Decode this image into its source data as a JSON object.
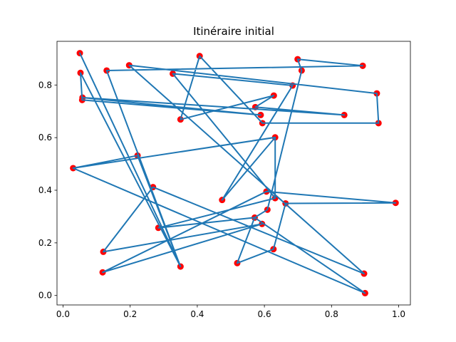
{
  "chart_data": {
    "type": "line",
    "title": "Itinéraire initial",
    "xlabel": "",
    "ylabel": "",
    "xlim": [
      -0.018,
      1.035
    ],
    "ylim": [
      -0.036,
      0.966
    ],
    "x_ticks": [
      0.0,
      0.2,
      0.4,
      0.6,
      0.8,
      1.0
    ],
    "y_ticks": [
      0.0,
      0.2,
      0.4,
      0.6,
      0.8
    ],
    "x_tick_labels": [
      "0.0",
      "0.2",
      "0.4",
      "0.6",
      "0.8",
      "1.0"
    ],
    "y_tick_labels": [
      "0.0",
      "0.2",
      "0.4",
      "0.6",
      "0.8"
    ],
    "grid": false,
    "colors": {
      "line": "#1f77b4",
      "points": "#ff0000"
    },
    "cities": [
      [
        0.05,
        0.921
      ],
      [
        0.052,
        0.846
      ],
      [
        0.058,
        0.752
      ],
      [
        0.057,
        0.743
      ],
      [
        0.13,
        0.855
      ],
      [
        0.197,
        0.875
      ],
      [
        0.327,
        0.843
      ],
      [
        0.407,
        0.91
      ],
      [
        0.35,
        0.669
      ],
      [
        0.573,
        0.716
      ],
      [
        0.589,
        0.686
      ],
      [
        0.594,
        0.655
      ],
      [
        0.628,
        0.76
      ],
      [
        0.632,
        0.601
      ],
      [
        0.684,
        0.798
      ],
      [
        0.711,
        0.855
      ],
      [
        0.699,
        0.898
      ],
      [
        0.893,
        0.873
      ],
      [
        0.838,
        0.686
      ],
      [
        0.935,
        0.768
      ],
      [
        0.94,
        0.655
      ],
      [
        0.991,
        0.352
      ],
      [
        0.663,
        0.35
      ],
      [
        0.632,
        0.37
      ],
      [
        0.606,
        0.395
      ],
      [
        0.609,
        0.326
      ],
      [
        0.593,
        0.272
      ],
      [
        0.571,
        0.296
      ],
      [
        0.627,
        0.176
      ],
      [
        0.519,
        0.123
      ],
      [
        0.474,
        0.363
      ],
      [
        0.284,
        0.257
      ],
      [
        0.35,
        0.11
      ],
      [
        0.268,
        0.412
      ],
      [
        0.222,
        0.532
      ],
      [
        0.03,
        0.484
      ],
      [
        0.12,
        0.166
      ],
      [
        0.118,
        0.088
      ],
      [
        0.897,
        0.083
      ],
      [
        0.9,
        0.009
      ]
    ],
    "route": [
      [
        0.05,
        0.921
      ],
      [
        0.35,
        0.11
      ],
      [
        0.222,
        0.532
      ],
      [
        0.03,
        0.484
      ],
      [
        0.632,
        0.601
      ],
      [
        0.474,
        0.363
      ],
      [
        0.684,
        0.798
      ],
      [
        0.327,
        0.843
      ],
      [
        0.632,
        0.37
      ],
      [
        0.284,
        0.257
      ],
      [
        0.571,
        0.296
      ],
      [
        0.609,
        0.326
      ],
      [
        0.711,
        0.855
      ],
      [
        0.699,
        0.898
      ],
      [
        0.893,
        0.873
      ],
      [
        0.13,
        0.855
      ],
      [
        0.35,
        0.11
      ],
      [
        0.052,
        0.846
      ],
      [
        0.057,
        0.743
      ],
      [
        0.589,
        0.686
      ],
      [
        0.058,
        0.752
      ],
      [
        0.838,
        0.686
      ],
      [
        0.573,
        0.716
      ],
      [
        0.628,
        0.76
      ],
      [
        0.35,
        0.669
      ],
      [
        0.407,
        0.91
      ],
      [
        0.594,
        0.655
      ],
      [
        0.94,
        0.655
      ],
      [
        0.935,
        0.768
      ],
      [
        0.197,
        0.875
      ],
      [
        0.897,
        0.083
      ],
      [
        0.268,
        0.412
      ],
      [
        0.12,
        0.166
      ],
      [
        0.593,
        0.272
      ],
      [
        0.118,
        0.088
      ],
      [
        0.606,
        0.395
      ],
      [
        0.991,
        0.352
      ],
      [
        0.663,
        0.35
      ],
      [
        0.627,
        0.176
      ],
      [
        0.519,
        0.123
      ],
      [
        0.571,
        0.296
      ],
      [
        0.9,
        0.009
      ],
      [
        0.03,
        0.484
      ],
      [
        0.632,
        0.601
      ],
      [
        0.632,
        0.37
      ]
    ]
  }
}
